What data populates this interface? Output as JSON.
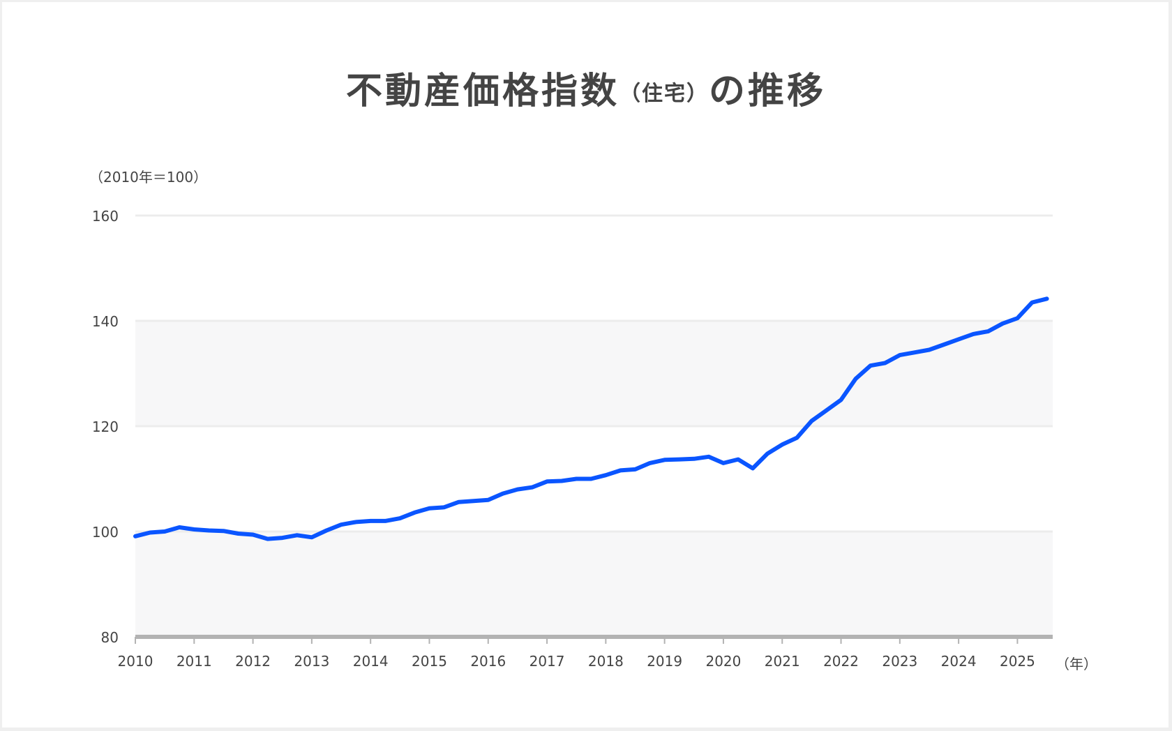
{
  "title": {
    "main": "不動産価格指数",
    "sub": "（住宅）",
    "tail": "の推移"
  },
  "chart_data": {
    "type": "line",
    "title": "不動産価格指数（住宅）の推移",
    "ylabel": "（2010年＝100）",
    "xlabel": "（年）",
    "ylim": [
      80,
      160
    ],
    "yticks": [
      "160",
      "140",
      "120",
      "100",
      "80"
    ],
    "xticks": [
      "2010",
      "2011",
      "2012",
      "2013",
      "2014",
      "2015",
      "2016",
      "2017",
      "2018",
      "2019",
      "2020",
      "2021",
      "2022",
      "2023",
      "2024",
      "2025"
    ],
    "grid": true,
    "shaded_bands": [
      [
        80,
        100
      ],
      [
        120,
        140
      ]
    ],
    "series": [
      {
        "name": "不動産価格指数（住宅）",
        "color": "#0a55ff",
        "x": [
          2010.0,
          2010.25,
          2010.5,
          2010.75,
          2011.0,
          2011.25,
          2011.5,
          2011.75,
          2012.0,
          2012.25,
          2012.5,
          2012.75,
          2013.0,
          2013.25,
          2013.5,
          2013.75,
          2014.0,
          2014.25,
          2014.5,
          2014.75,
          2015.0,
          2015.25,
          2015.5,
          2015.75,
          2016.0,
          2016.25,
          2016.5,
          2016.75,
          2017.0,
          2017.25,
          2017.5,
          2017.75,
          2018.0,
          2018.25,
          2018.5,
          2018.75,
          2019.0,
          2019.25,
          2019.5,
          2019.75,
          2020.0,
          2020.25,
          2020.5,
          2020.75,
          2021.0,
          2021.25,
          2021.5,
          2021.75,
          2022.0,
          2022.25,
          2022.5,
          2022.75,
          2023.0,
          2023.25,
          2023.5,
          2023.75,
          2024.0,
          2024.25,
          2024.5,
          2024.75,
          2025.0,
          2025.25,
          2025.5
        ],
        "values": [
          99.1,
          99.8,
          100.0,
          100.8,
          100.4,
          100.2,
          100.1,
          99.6,
          99.4,
          98.6,
          98.8,
          99.3,
          98.9,
          100.2,
          101.3,
          101.8,
          102.0,
          102.0,
          102.5,
          103.6,
          104.4,
          104.6,
          105.6,
          105.8,
          106.0,
          107.2,
          108.0,
          108.4,
          109.5,
          109.6,
          110.0,
          110.0,
          110.7,
          111.6,
          111.8,
          113.0,
          113.6,
          113.7,
          113.8,
          114.2,
          113.0,
          113.7,
          112.0,
          114.8,
          116.5,
          117.8,
          121.0,
          123.0,
          125.0,
          129.0,
          131.5,
          132.0,
          133.5,
          134.0,
          134.5,
          135.5,
          136.5,
          137.5,
          138.0,
          139.5,
          140.5,
          143.5,
          144.2
        ]
      }
    ]
  }
}
